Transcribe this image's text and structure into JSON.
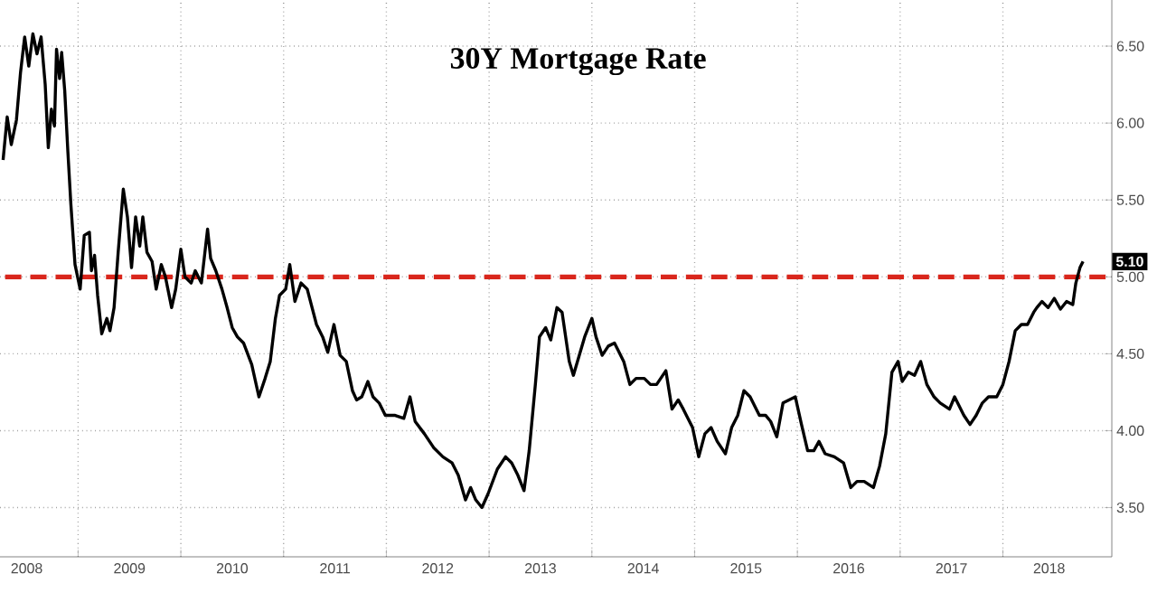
{
  "chart_data": {
    "type": "line",
    "title": "30Y Mortgage Rate",
    "x": [
      2008.27,
      2008.31,
      2008.35,
      2008.4,
      2008.44,
      2008.48,
      2008.52,
      2008.56,
      2008.6,
      2008.64,
      2008.68,
      2008.71,
      2008.74,
      2008.77,
      2008.79,
      2008.82,
      2008.84,
      2008.87,
      2008.9,
      2008.93,
      2008.97,
      2009.02,
      2009.06,
      2009.11,
      2009.13,
      2009.16,
      2009.19,
      2009.23,
      2009.28,
      2009.31,
      2009.35,
      2009.39,
      2009.44,
      2009.48,
      2009.52,
      2009.56,
      2009.6,
      2009.63,
      2009.67,
      2009.72,
      2009.76,
      2009.81,
      2009.85,
      2009.91,
      2009.95,
      2010.0,
      2010.04,
      2010.1,
      2010.14,
      2010.2,
      2010.26,
      2010.29,
      2010.34,
      2010.4,
      2010.45,
      2010.5,
      2010.55,
      2010.61,
      2010.69,
      2010.76,
      2010.82,
      2010.87,
      2010.92,
      2010.96,
      2011.02,
      2011.06,
      2011.11,
      2011.17,
      2011.23,
      2011.32,
      2011.38,
      2011.43,
      2011.49,
      2011.55,
      2011.61,
      2011.67,
      2011.71,
      2011.76,
      2011.82,
      2011.87,
      2011.93,
      2011.99,
      2012.08,
      2012.17,
      2012.23,
      2012.28,
      2012.37,
      2012.46,
      2012.55,
      2012.64,
      2012.7,
      2012.77,
      2012.82,
      2012.87,
      2012.93,
      2012.99,
      2013.08,
      2013.16,
      2013.22,
      2013.28,
      2013.34,
      2013.39,
      2013.45,
      2013.49,
      2013.55,
      2013.6,
      2013.66,
      2013.71,
      2013.78,
      2013.82,
      2013.93,
      2014.0,
      2014.04,
      2014.1,
      2014.16,
      2014.22,
      2014.25,
      2014.31,
      2014.37,
      2014.43,
      2014.51,
      2014.57,
      2014.63,
      2014.72,
      2014.78,
      2014.84,
      2014.89,
      2014.95,
      2014.98,
      2015.04,
      2015.1,
      2015.16,
      2015.22,
      2015.3,
      2015.36,
      2015.42,
      2015.48,
      2015.54,
      2015.63,
      2015.69,
      2015.74,
      2015.8,
      2015.86,
      2015.92,
      2015.98,
      2016.04,
      2016.1,
      2016.16,
      2016.21,
      2016.27,
      2016.36,
      2016.45,
      2016.52,
      2016.58,
      2016.65,
      2016.74,
      2016.8,
      2016.86,
      2016.92,
      2016.98,
      2017.02,
      2017.08,
      2017.14,
      2017.2,
      2017.26,
      2017.33,
      2017.39,
      2017.48,
      2017.53,
      2017.62,
      2017.68,
      2017.74,
      2017.8,
      2017.86,
      2017.94,
      2018.0,
      2018.06,
      2018.12,
      2018.18,
      2018.24,
      2018.3,
      2018.33,
      2018.38,
      2018.44,
      2018.5,
      2018.56,
      2018.62,
      2018.68,
      2018.71,
      2018.75,
      2018.78
    ],
    "series": [
      {
        "color": "#000000",
        "values": [
          5.76,
          6.04,
          5.86,
          6.02,
          6.33,
          6.56,
          6.37,
          6.58,
          6.45,
          6.56,
          6.25,
          5.84,
          6.09,
          5.98,
          6.48,
          6.29,
          6.46,
          6.21,
          5.82,
          5.47,
          5.08,
          4.92,
          5.27,
          5.29,
          5.04,
          5.14,
          4.88,
          4.63,
          4.73,
          4.65,
          4.8,
          5.16,
          5.57,
          5.39,
          5.06,
          5.39,
          5.2,
          5.39,
          5.16,
          5.1,
          4.92,
          5.08,
          5.0,
          4.8,
          4.92,
          5.18,
          5.0,
          4.96,
          5.04,
          4.96,
          5.31,
          5.12,
          5.04,
          4.92,
          4.8,
          4.67,
          4.61,
          4.57,
          4.43,
          4.22,
          4.34,
          4.45,
          4.73,
          4.88,
          4.92,
          5.08,
          4.84,
          4.96,
          4.92,
          4.69,
          4.61,
          4.51,
          4.69,
          4.49,
          4.45,
          4.26,
          4.2,
          4.22,
          4.32,
          4.22,
          4.18,
          4.1,
          4.1,
          4.08,
          4.22,
          4.06,
          3.98,
          3.89,
          3.83,
          3.79,
          3.71,
          3.55,
          3.63,
          3.55,
          3.5,
          3.59,
          3.75,
          3.83,
          3.79,
          3.71,
          3.61,
          3.87,
          4.3,
          4.61,
          4.67,
          4.59,
          4.8,
          4.77,
          4.45,
          4.36,
          4.61,
          4.73,
          4.61,
          4.49,
          4.55,
          4.57,
          4.53,
          4.45,
          4.3,
          4.34,
          4.34,
          4.3,
          4.3,
          4.39,
          4.14,
          4.2,
          4.14,
          4.06,
          4.02,
          3.83,
          3.98,
          4.02,
          3.93,
          3.85,
          4.02,
          4.1,
          4.26,
          4.22,
          4.1,
          4.1,
          4.06,
          3.96,
          4.18,
          4.2,
          4.22,
          4.04,
          3.87,
          3.87,
          3.93,
          3.85,
          3.83,
          3.79,
          3.63,
          3.67,
          3.67,
          3.63,
          3.77,
          3.98,
          4.38,
          4.45,
          4.32,
          4.38,
          4.36,
          4.45,
          4.3,
          4.22,
          4.18,
          4.14,
          4.22,
          4.1,
          4.04,
          4.1,
          4.18,
          4.22,
          4.22,
          4.3,
          4.45,
          4.65,
          4.69,
          4.69,
          4.77,
          4.8,
          4.84,
          4.8,
          4.86,
          4.79,
          4.84,
          4.82,
          4.96,
          5.06,
          5.1
        ]
      }
    ],
    "xlim": [
      2008.24,
      2019.06
    ],
    "ylim": [
      3.18,
      6.8
    ],
    "xticks": [
      {
        "value": 2008.5,
        "label": "2008"
      },
      {
        "value": 2009,
        "label": null
      },
      {
        "value": 2009.5,
        "label": "2009"
      },
      {
        "value": 2010,
        "label": null
      },
      {
        "value": 2010.5,
        "label": "2010"
      },
      {
        "value": 2011,
        "label": null
      },
      {
        "value": 2011.5,
        "label": "2011"
      },
      {
        "value": 2012,
        "label": null
      },
      {
        "value": 2012.5,
        "label": "2012"
      },
      {
        "value": 2013,
        "label": null
      },
      {
        "value": 2013.5,
        "label": "2013"
      },
      {
        "value": 2014,
        "label": null
      },
      {
        "value": 2014.5,
        "label": "2014"
      },
      {
        "value": 2015,
        "label": null
      },
      {
        "value": 2015.5,
        "label": "2015"
      },
      {
        "value": 2016,
        "label": null
      },
      {
        "value": 2016.5,
        "label": "2016"
      },
      {
        "value": 2017,
        "label": null
      },
      {
        "value": 2017.5,
        "label": "2017"
      },
      {
        "value": 2018,
        "label": null
      },
      {
        "value": 2018.45,
        "label": "2018"
      }
    ],
    "yticks": [
      {
        "value": 3.5,
        "label": "3.50"
      },
      {
        "value": 4.0,
        "label": "4.00"
      },
      {
        "value": 4.5,
        "label": "4.50"
      },
      {
        "value": 5.0,
        "label": "5.00"
      },
      {
        "value": 5.5,
        "label": "5.50"
      },
      {
        "value": 6.0,
        "label": "6.00"
      },
      {
        "value": 6.5,
        "label": "6.50"
      }
    ],
    "grid": true,
    "line_style": "solid",
    "ref_lines": [
      {
        "axis": "y",
        "value": 5.0,
        "color": "#d9261c",
        "line_style": "dashed"
      }
    ],
    "annotations": [
      {
        "text": "5.10",
        "y": 5.1
      }
    ]
  }
}
